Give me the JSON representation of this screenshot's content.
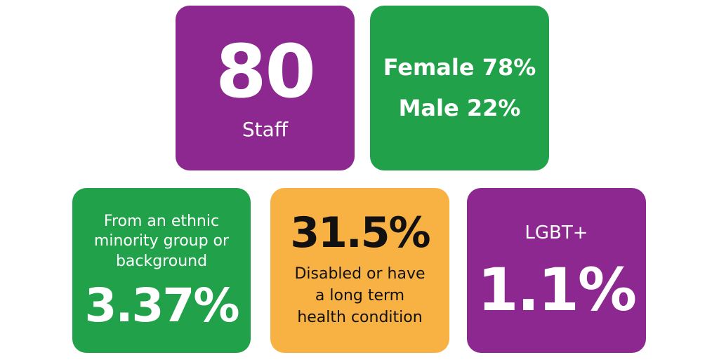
{
  "cards": [
    {
      "value": "80",
      "label": "Staff"
    },
    {
      "lines": [
        "Female 78%",
        "Male 22%"
      ]
    },
    {
      "label": "From an ethnic minority group or background",
      "value": "3.37%"
    },
    {
      "value": "31.5%",
      "label": "Disabled or have a long term health condition"
    },
    {
      "label": "LGBT+",
      "value": "1.1%"
    }
  ]
}
